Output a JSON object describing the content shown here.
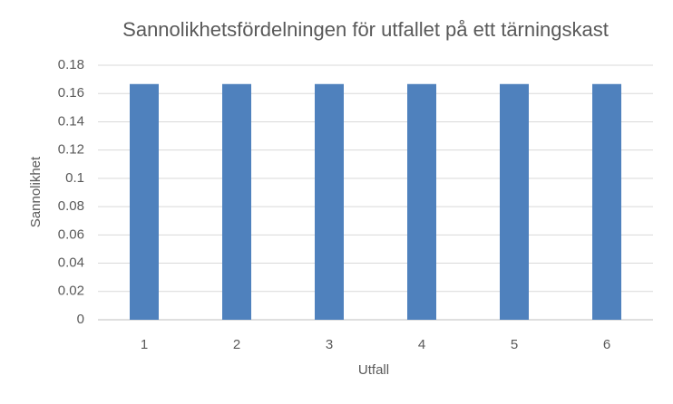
{
  "chart_data": {
    "type": "bar",
    "title": "Sannolikhetsfördelningen för utfallet på ett tärningskast",
    "x_label": "Utfall",
    "y_label": "Sannolikhet",
    "categories": [
      "1",
      "2",
      "3",
      "4",
      "5",
      "6"
    ],
    "values": [
      0.1667,
      0.1667,
      0.1667,
      0.1667,
      0.1667,
      0.1667
    ],
    "color": "#4f81bd",
    "ylim": [
      0,
      0.18
    ],
    "yticks": [
      0,
      0.02,
      0.04,
      0.06,
      0.08,
      0.1,
      0.12,
      0.14,
      0.16,
      0.18
    ],
    "grid": true
  }
}
